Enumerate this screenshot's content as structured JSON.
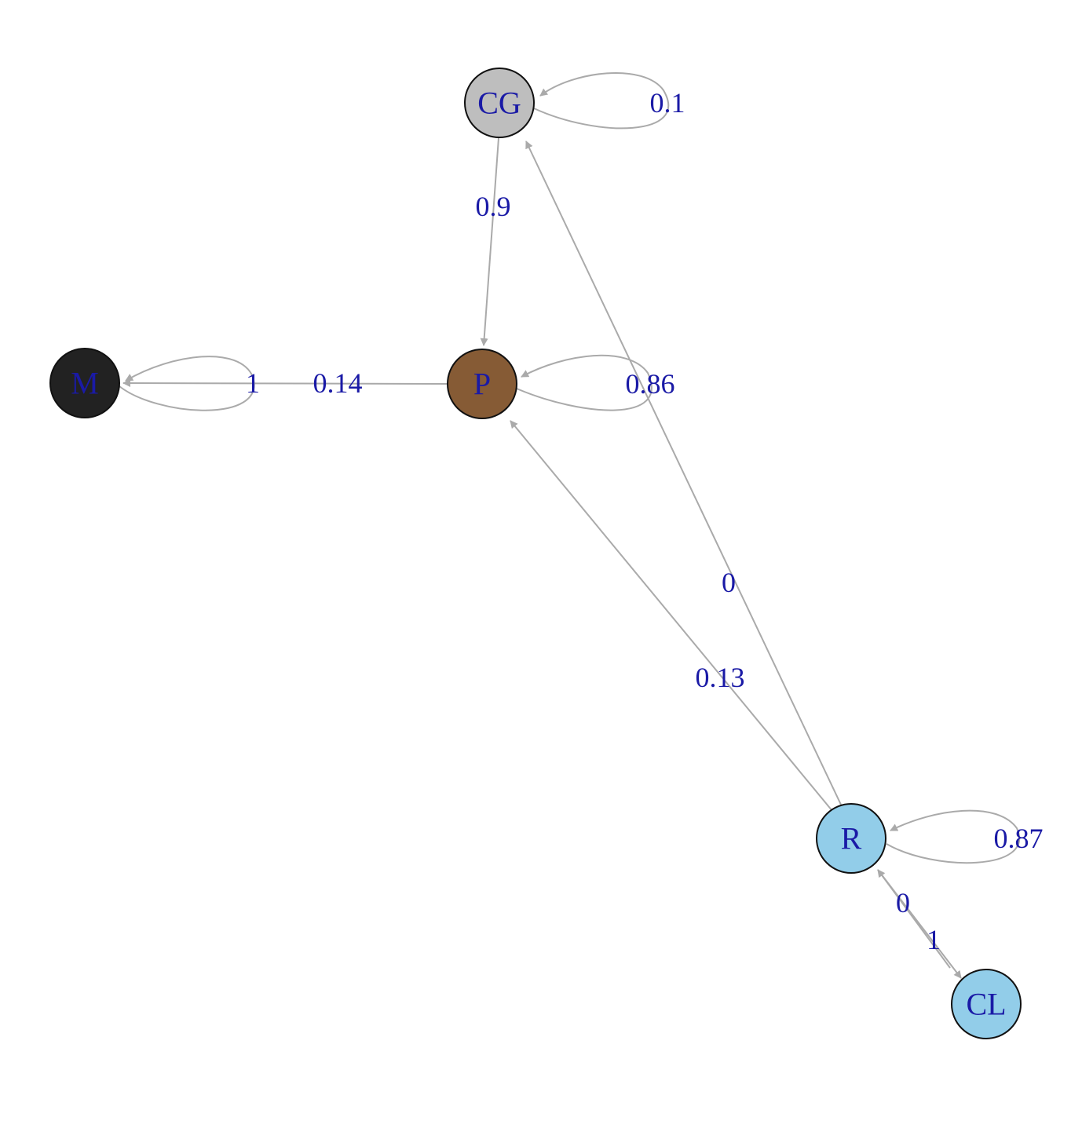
{
  "graph": {
    "label_color": "#1a1aa6",
    "edge_color": "#aaaaaa",
    "node_border": "#111111",
    "nodes": {
      "CG": {
        "label": "CG",
        "fill": "#bebebe"
      },
      "M": {
        "label": "M",
        "fill": "#222222"
      },
      "P": {
        "label": "P",
        "fill": "#865b35"
      },
      "R": {
        "label": "R",
        "fill": "#92cde9"
      },
      "CL": {
        "label": "CL",
        "fill": "#92cde9"
      }
    },
    "edges": {
      "cg_cg": {
        "from": "CG",
        "to": "CG",
        "label": "0.1"
      },
      "cg_p": {
        "from": "CG",
        "to": "P",
        "label": "0.9"
      },
      "m_m": {
        "from": "M",
        "to": "M",
        "label": "1"
      },
      "p_m": {
        "from": "P",
        "to": "M",
        "label": "0.14"
      },
      "p_p": {
        "from": "P",
        "to": "P",
        "label": "0.86"
      },
      "r_cg": {
        "from": "R",
        "to": "CG",
        "label": "0"
      },
      "r_p": {
        "from": "R",
        "to": "P",
        "label": "0.13"
      },
      "r_r": {
        "from": "R",
        "to": "R",
        "label": "0.87"
      },
      "cl_r": {
        "from": "CL",
        "to": "R",
        "label": "0"
      },
      "r_cl": {
        "from": "R",
        "to": "CL",
        "label": "1"
      }
    }
  }
}
